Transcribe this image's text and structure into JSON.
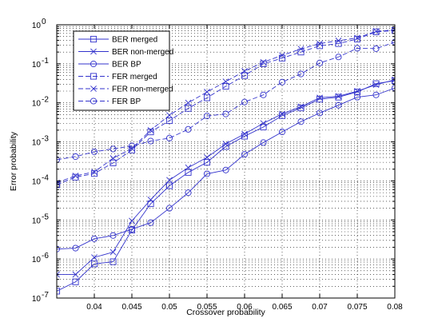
{
  "chart_data": {
    "type": "line",
    "title": "",
    "xlabel": "Crossover probability",
    "ylabel": "Error probability",
    "xlim": [
      0.035,
      0.08
    ],
    "ylim": [
      1e-07,
      1
    ],
    "yscale": "log",
    "grid": true,
    "legend_position": "top-left",
    "x_ticks": [
      0.04,
      0.045,
      0.05,
      0.055,
      0.06,
      0.065,
      0.07,
      0.075,
      0.08
    ],
    "x_tick_labels": [
      "0.04",
      "0.045",
      "0.05",
      "0.055",
      "0.06",
      "0.065",
      "0.07",
      "0.075",
      "0.08"
    ],
    "y_ticks": [
      1e-07,
      1e-06,
      1e-05,
      0.0001,
      0.001,
      0.01,
      0.1,
      1
    ],
    "y_tick_labels": [
      {
        "base": "10",
        "exp": "-7"
      },
      {
        "base": "10",
        "exp": "-6"
      },
      {
        "base": "10",
        "exp": "-5"
      },
      {
        "base": "10",
        "exp": "-4"
      },
      {
        "base": "10",
        "exp": "-3"
      },
      {
        "base": "10",
        "exp": "-2"
      },
      {
        "base": "10",
        "exp": "-1"
      },
      {
        "base": "10",
        "exp": "0"
      }
    ],
    "x": [
      0.035,
      0.0375,
      0.04,
      0.0425,
      0.045,
      0.0475,
      0.05,
      0.0525,
      0.055,
      0.0575,
      0.06,
      0.0625,
      0.065,
      0.0675,
      0.07,
      0.0725,
      0.075,
      0.0775,
      0.08
    ],
    "series": [
      {
        "name": "BER merged",
        "marker": "square",
        "dash": "solid",
        "color": "#3333cc",
        "values": [
          1.5e-07,
          2.6e-07,
          7.5e-07,
          8.5e-07,
          5.5e-06,
          2.6e-05,
          7.5e-05,
          0.000165,
          0.0003,
          0.00076,
          0.0014,
          0.0024,
          0.0047,
          0.0074,
          0.0124,
          0.014,
          0.019,
          0.031,
          0.037
        ]
      },
      {
        "name": "BER non-merged",
        "marker": "x",
        "dash": "solid",
        "color": "#3333cc",
        "values": [
          4e-07,
          4e-07,
          1.1e-06,
          1.5e-06,
          9.5e-06,
          3.3e-05,
          0.000105,
          0.00022,
          0.0004,
          0.00089,
          0.0016,
          0.003,
          0.0052,
          0.008,
          0.0135,
          0.0148,
          0.02,
          0.029,
          0.039
        ]
      },
      {
        "name": "BER BP",
        "marker": "circle",
        "dash": "solid",
        "color": "#3333cc",
        "values": [
          1.8e-06,
          1.9e-06,
          3.3e-06,
          4e-06,
          5.8e-06,
          8.5e-06,
          2e-05,
          5e-05,
          0.000152,
          0.00019,
          0.00048,
          0.00096,
          0.0018,
          0.0033,
          0.0055,
          0.0087,
          0.014,
          0.016,
          0.024
        ]
      },
      {
        "name": "FER merged",
        "marker": "square",
        "dash": "dashed",
        "color": "#3333cc",
        "values": [
          8e-05,
          0.000125,
          0.000155,
          0.00029,
          0.00062,
          0.0018,
          0.0035,
          0.0072,
          0.0135,
          0.0265,
          0.05,
          0.1,
          0.14,
          0.2,
          0.29,
          0.33,
          0.43,
          0.66,
          0.71
        ]
      },
      {
        "name": "FER non-merged",
        "marker": "x",
        "dash": "dashed",
        "color": "#3333cc",
        "values": [
          9e-05,
          0.000135,
          0.00017,
          0.00038,
          0.00068,
          0.002,
          0.0048,
          0.01,
          0.019,
          0.035,
          0.065,
          0.11,
          0.165,
          0.24,
          0.33,
          0.39,
          0.46,
          0.68,
          0.74
        ]
      },
      {
        "name": "FER BP",
        "marker": "circle",
        "dash": "dashed",
        "color": "#3333cc",
        "values": [
          0.00035,
          0.00042,
          0.00056,
          0.00066,
          0.00079,
          0.00105,
          0.00125,
          0.0021,
          0.0046,
          0.0052,
          0.0105,
          0.016,
          0.034,
          0.055,
          0.105,
          0.15,
          0.25,
          0.245,
          0.36
        ]
      }
    ]
  }
}
